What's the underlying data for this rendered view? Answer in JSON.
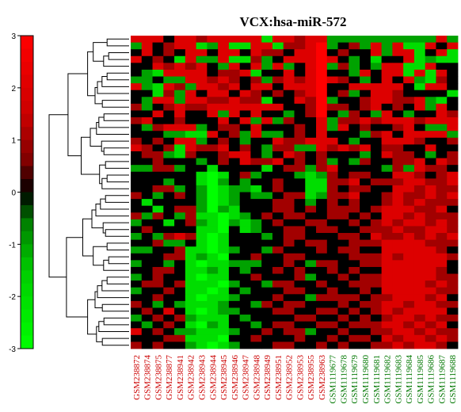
{
  "chart_data": {
    "type": "heatmap",
    "title": "VCX:hsa-miR-572",
    "colorbar": {
      "ticks": [
        3,
        2,
        1,
        0,
        -1,
        -2,
        -3
      ],
      "stops": [
        {
          "value": -3,
          "color": "#00ff00"
        },
        {
          "value": -1.5,
          "color": "#00cc00"
        },
        {
          "value": -0.6,
          "color": "#008000"
        },
        {
          "value": 0,
          "color": "#000000"
        },
        {
          "value": 0.6,
          "color": "#800000"
        },
        {
          "value": 1.5,
          "color": "#cc0000"
        },
        {
          "value": 3,
          "color": "#ff0000"
        }
      ]
    },
    "columns": [
      {
        "label": "GSM238872",
        "group": "red"
      },
      {
        "label": "GSM238874",
        "group": "red"
      },
      {
        "label": "GSM238875",
        "group": "red"
      },
      {
        "label": "GSM238877",
        "group": "red"
      },
      {
        "label": "GSM238941",
        "group": "red"
      },
      {
        "label": "GSM238942",
        "group": "red"
      },
      {
        "label": "GSM238943",
        "group": "red"
      },
      {
        "label": "GSM238944",
        "group": "red"
      },
      {
        "label": "GSM238945",
        "group": "red"
      },
      {
        "label": "GSM238946",
        "group": "red"
      },
      {
        "label": "GSM238947",
        "group": "red"
      },
      {
        "label": "GSM238948",
        "group": "red"
      },
      {
        "label": "GSM238949",
        "group": "red"
      },
      {
        "label": "GSM238951",
        "group": "red"
      },
      {
        "label": "GSM238952",
        "group": "red"
      },
      {
        "label": "GSM238953",
        "group": "red"
      },
      {
        "label": "GSM238955",
        "group": "red"
      },
      {
        "label": "GSM238963",
        "group": "red"
      },
      {
        "label": "GSM1119677",
        "group": "green"
      },
      {
        "label": "GSM1119678",
        "group": "green"
      },
      {
        "label": "GSM1119679",
        "group": "green"
      },
      {
        "label": "GSM1119680",
        "group": "green"
      },
      {
        "label": "GSM1119681",
        "group": "green"
      },
      {
        "label": "GSM1119682",
        "group": "green"
      },
      {
        "label": "GSM1119683",
        "group": "green"
      },
      {
        "label": "GSM1119684",
        "group": "green"
      },
      {
        "label": "GSM1119685",
        "group": "green"
      },
      {
        "label": "GSM1119686",
        "group": "green"
      },
      {
        "label": "GSM1119687",
        "group": "green"
      },
      {
        "label": "GSM1119688",
        "group": "green"
      }
    ],
    "group_colors": {
      "red": "#cc0000",
      "green": "#007700"
    },
    "n_rows": 46,
    "values": [
      [
        2,
        2,
        2,
        0,
        2,
        2,
        1,
        2,
        2,
        2,
        2,
        2,
        -2,
        2,
        2,
        1,
        2,
        2,
        -1,
        -1,
        -1,
        -1,
        -1,
        -1,
        -1,
        -1,
        -1,
        -1,
        2,
        -1
      ],
      [
        -1,
        2,
        0,
        1,
        2,
        2,
        -2,
        -1,
        2,
        -2,
        -2,
        2,
        2,
        -2,
        1,
        1,
        2,
        3,
        -1,
        0,
        1,
        -1,
        2,
        -1,
        2,
        -2,
        -2,
        2,
        0,
        2
      ],
      [
        0,
        2,
        0,
        1,
        0,
        2,
        2,
        0,
        2,
        2,
        0,
        2,
        1,
        1,
        0,
        2,
        2,
        3,
        0,
        1,
        0,
        0,
        2,
        -1,
        2,
        2,
        -2,
        0,
        2,
        -2
      ],
      [
        2,
        0,
        1,
        0,
        -2,
        2,
        -1,
        -1,
        2,
        -2,
        -2,
        1,
        -1,
        0,
        2,
        2,
        2,
        3,
        2,
        0,
        -1,
        0,
        -2,
        0,
        0,
        2,
        -2,
        -1,
        -2,
        -2
      ],
      [
        0,
        0,
        2,
        1,
        2,
        1,
        2,
        0,
        -1,
        2,
        0,
        2,
        -1,
        2,
        -1,
        0,
        2,
        3,
        -1,
        1,
        -1,
        0,
        -1,
        2,
        2,
        -2,
        -2,
        2,
        0,
        0
      ],
      [
        0,
        -1,
        -2,
        2,
        2,
        2,
        2,
        0,
        1,
        1,
        2,
        -2,
        0,
        0,
        2,
        0,
        2,
        3,
        0,
        0,
        -1,
        2,
        0,
        2,
        2,
        -2,
        2,
        -2,
        2,
        0
      ],
      [
        -1,
        -1,
        0,
        -1,
        -1,
        2,
        2,
        1,
        2,
        1,
        0,
        1,
        -1,
        1,
        2,
        1,
        2,
        3,
        2,
        1,
        0,
        -1,
        0,
        2,
        0,
        2,
        -1,
        -2,
        1,
        0
      ],
      [
        2,
        -1,
        -2,
        2,
        1,
        -1,
        2,
        2,
        1,
        2,
        0,
        2,
        2,
        0,
        2,
        2,
        2,
        3,
        0,
        0,
        2,
        2,
        2,
        2,
        2,
        0,
        -2,
        2,
        2,
        0
      ],
      [
        0,
        0,
        -2,
        1,
        -1,
        2,
        0,
        2,
        2,
        0,
        2,
        1,
        0,
        1,
        0,
        1,
        2,
        3,
        0,
        1,
        -1,
        0,
        2,
        2,
        1,
        0,
        0,
        0,
        0,
        -2
      ],
      [
        0,
        -1,
        2,
        2,
        -1,
        2,
        2,
        1,
        1,
        2,
        1,
        1,
        -2,
        0,
        0,
        2,
        1,
        3,
        -1,
        0,
        0,
        1,
        2,
        2,
        1,
        1,
        2,
        -1,
        -2,
        0
      ],
      [
        1,
        -1,
        0,
        1,
        2,
        1,
        1,
        2,
        2,
        2,
        2,
        2,
        2,
        2,
        0,
        0,
        1,
        3,
        1,
        1,
        0,
        1,
        2,
        0,
        1,
        0,
        2,
        -1,
        2,
        0
      ],
      [
        0,
        0,
        2,
        0,
        2,
        0,
        0,
        2,
        -1,
        2,
        0,
        2,
        0,
        0,
        -1,
        0,
        1,
        3,
        0,
        -1,
        1,
        0,
        -1,
        2,
        0,
        -1,
        0,
        0,
        2,
        1
      ],
      [
        1,
        2,
        0,
        0,
        1,
        0,
        0,
        0,
        2,
        0,
        2,
        -1,
        2,
        -1,
        1,
        0,
        0,
        2,
        -1,
        1,
        1,
        2,
        1,
        2,
        2,
        2,
        1,
        2,
        2,
        2
      ],
      [
        0,
        -1,
        1,
        2,
        2,
        2,
        -1,
        0,
        1,
        1,
        0,
        2,
        0,
        0,
        0,
        1,
        0,
        2,
        -1,
        2,
        0,
        1,
        0,
        0,
        1,
        2,
        0,
        -1,
        -1,
        2
      ],
      [
        0,
        0,
        0,
        -1,
        -1,
        -2,
        -2,
        2,
        0,
        1,
        -1,
        2,
        -1,
        -1,
        0,
        1,
        0,
        2,
        0,
        0,
        0,
        -1,
        1,
        2,
        0,
        2,
        2,
        2,
        2,
        -1
      ],
      [
        1,
        0,
        1,
        0,
        2,
        2,
        -1,
        0,
        1,
        0,
        -1,
        0,
        0,
        2,
        1,
        1,
        2,
        2,
        2,
        0,
        -1,
        0,
        0,
        2,
        2,
        2,
        1,
        0,
        0,
        1
      ],
      [
        2,
        1,
        0,
        1,
        -2,
        2,
        1,
        1,
        2,
        0,
        1,
        0,
        -1,
        1,
        1,
        -1,
        -1,
        2,
        1,
        2,
        1,
        2,
        0,
        1,
        1,
        0,
        0,
        2,
        0,
        0
      ],
      [
        0,
        1,
        1,
        -1,
        -2,
        1,
        0,
        0,
        1,
        2,
        2,
        0,
        -1,
        0,
        2,
        1,
        0,
        1,
        0,
        0,
        0,
        -1,
        0,
        2,
        1,
        1,
        0,
        -1,
        0,
        1
      ],
      [
        0,
        0,
        1,
        0,
        0,
        0,
        -1,
        0,
        1,
        0,
        2,
        1,
        1,
        2,
        0,
        1,
        0,
        1,
        -1,
        0,
        -1,
        1,
        0,
        0,
        1,
        1,
        2,
        0,
        2,
        1
      ],
      [
        -1,
        -1,
        1,
        1,
        -1,
        0,
        0,
        -2,
        0,
        0,
        0,
        0,
        -2,
        0,
        1,
        1,
        -1,
        1,
        2,
        0,
        0,
        0,
        0,
        -1,
        1,
        -1,
        2,
        1,
        1,
        0
      ],
      [
        0,
        0,
        0,
        0,
        0,
        0,
        -2,
        -3,
        -2,
        0,
        1,
        -1,
        0,
        0,
        0,
        -1,
        -2,
        -1,
        1,
        0,
        1,
        1,
        0,
        0,
        2,
        2,
        1,
        0,
        1,
        2
      ],
      [
        0,
        0,
        0,
        -1,
        0,
        0,
        -2,
        -3,
        -1,
        0,
        -1,
        0,
        0,
        1,
        0,
        0,
        -2,
        -2,
        1,
        1,
        2,
        0,
        1,
        1,
        1,
        2,
        2,
        1,
        1,
        2
      ],
      [
        0,
        0,
        1,
        1,
        -1,
        0,
        -1,
        -3,
        -2,
        -1,
        -1,
        -2,
        0,
        1,
        0,
        0,
        -2,
        -2,
        1,
        0,
        1,
        1,
        0,
        0,
        2,
        2,
        1,
        2,
        1,
        1
      ],
      [
        1,
        0,
        -1,
        0,
        1,
        0,
        -1,
        -3,
        -2,
        -1,
        0,
        -1,
        -1,
        0,
        1,
        1,
        -2,
        -1,
        1,
        1,
        2,
        0,
        0,
        1,
        2,
        1,
        1,
        2,
        1,
        2
      ],
      [
        0,
        -2,
        0,
        0,
        0,
        0,
        -1,
        -3,
        -2,
        -1,
        0,
        0,
        0,
        1,
        1,
        0,
        -1,
        0,
        1,
        0,
        1,
        0,
        0,
        1,
        2,
        1,
        2,
        1,
        1,
        1
      ],
      [
        0,
        0,
        -2,
        0,
        1,
        1,
        -1,
        -3,
        -1,
        -2,
        0,
        0,
        0,
        1,
        1,
        0,
        1,
        0,
        1,
        1,
        1,
        0,
        1,
        2,
        2,
        2,
        1,
        1,
        2,
        0
      ],
      [
        1,
        -1,
        1,
        0,
        -1,
        1,
        -2,
        -2,
        -3,
        -2,
        -1,
        0,
        1,
        0,
        1,
        1,
        0,
        0,
        1,
        1,
        0,
        1,
        0,
        2,
        2,
        1,
        2,
        1,
        1,
        1
      ],
      [
        -1,
        0,
        0,
        -2,
        0,
        1,
        -1,
        -2,
        -3,
        -1,
        -2,
        -1,
        0,
        1,
        0,
        0,
        1,
        1,
        0,
        0,
        1,
        0,
        1,
        2,
        1,
        2,
        2,
        1,
        2,
        1
      ],
      [
        0,
        1,
        0,
        0,
        0,
        0,
        -2,
        -2,
        -3,
        0,
        -2,
        -1,
        0,
        0,
        1,
        1,
        0,
        1,
        1,
        0,
        0,
        1,
        1,
        1,
        2,
        1,
        1,
        2,
        2,
        1
      ],
      [
        -1,
        0,
        -1,
        1,
        2,
        1,
        -2,
        -3,
        -2,
        0,
        0,
        0,
        -1,
        0,
        1,
        1,
        0,
        0,
        0,
        1,
        1,
        0,
        2,
        1,
        1,
        2,
        1,
        2,
        1,
        2
      ],
      [
        0,
        0,
        1,
        -1,
        -1,
        0,
        -2,
        -3,
        -2,
        0,
        0,
        0,
        0,
        0,
        1,
        0,
        1,
        1,
        0,
        0,
        1,
        1,
        1,
        2,
        2,
        2,
        2,
        1,
        1,
        1
      ],
      [
        -1,
        -1,
        0,
        0,
        1,
        -2,
        -2,
        -3,
        -2,
        -1,
        0,
        0,
        -1,
        1,
        0,
        0,
        0,
        1,
        0,
        1,
        1,
        0,
        0,
        2,
        2,
        2,
        2,
        2,
        1,
        0
      ],
      [
        0,
        0,
        0,
        1,
        1,
        -2,
        -1,
        -2,
        -3,
        0,
        0,
        1,
        0,
        0,
        1,
        1,
        0,
        0,
        0,
        0,
        1,
        1,
        1,
        2,
        1,
        2,
        2,
        2,
        2,
        1
      ],
      [
        -1,
        0,
        0,
        -1,
        0,
        -2,
        -3,
        -2,
        -2,
        -1,
        -1,
        -1,
        0,
        0,
        1,
        0,
        -1,
        1,
        1,
        0,
        0,
        1,
        1,
        2,
        2,
        2,
        2,
        2,
        2,
        0
      ],
      [
        0,
        0,
        1,
        1,
        0,
        -2,
        -2,
        -1,
        -2,
        0,
        -1,
        0,
        0,
        1,
        0,
        1,
        0,
        0,
        1,
        0,
        1,
        0,
        0,
        2,
        2,
        2,
        2,
        2,
        1,
        0
      ],
      [
        -1,
        0,
        1,
        0,
        0,
        -2,
        -3,
        -2,
        -2,
        0,
        0,
        1,
        0,
        0,
        0,
        1,
        -1,
        0,
        0,
        1,
        0,
        1,
        1,
        2,
        2,
        2,
        2,
        2,
        1,
        1
      ],
      [
        0,
        1,
        1,
        0,
        1,
        -2,
        -2,
        -2,
        -3,
        -1,
        0,
        0,
        -1,
        1,
        1,
        0,
        0,
        1,
        0,
        0,
        1,
        1,
        1,
        2,
        2,
        2,
        2,
        1,
        2,
        1
      ],
      [
        -1,
        0,
        0,
        1,
        0,
        -2,
        -2,
        -3,
        -2,
        0,
        -1,
        0,
        0,
        0,
        1,
        1,
        0,
        0,
        1,
        0,
        0,
        1,
        0,
        2,
        2,
        2,
        2,
        2,
        1,
        1
      ],
      [
        0,
        0,
        1,
        0,
        0,
        -2,
        -3,
        -2,
        -2,
        -1,
        0,
        0,
        0,
        1,
        0,
        0,
        -1,
        1,
        1,
        1,
        1,
        0,
        1,
        1,
        2,
        2,
        2,
        1,
        2,
        0
      ],
      [
        1,
        0,
        -1,
        0,
        -1,
        -2,
        -2,
        -2,
        -1,
        0,
        0,
        -1,
        1,
        0,
        1,
        1,
        0,
        0,
        0,
        1,
        0,
        1,
        1,
        2,
        2,
        1,
        2,
        2,
        1,
        1
      ],
      [
        0,
        1,
        0,
        2,
        0,
        -2,
        -3,
        -2,
        -1,
        -1,
        0,
        0,
        0,
        1,
        1,
        0,
        0,
        1,
        1,
        0,
        1,
        0,
        1,
        2,
        1,
        2,
        2,
        2,
        2,
        0
      ],
      [
        -1,
        0,
        1,
        0,
        1,
        -1,
        -2,
        -2,
        -2,
        0,
        -1,
        0,
        0,
        0,
        0,
        1,
        1,
        0,
        0,
        1,
        0,
        1,
        0,
        1,
        2,
        2,
        1,
        2,
        1,
        1
      ],
      [
        0,
        -1,
        0,
        1,
        0,
        -2,
        -3,
        -1,
        -2,
        0,
        0,
        -1,
        0,
        1,
        1,
        0,
        0,
        1,
        1,
        0,
        1,
        1,
        1,
        2,
        2,
        1,
        2,
        1,
        2,
        0
      ],
      [
        2,
        0,
        1,
        0,
        -1,
        -1,
        -2,
        -2,
        -2,
        -1,
        0,
        0,
        1,
        0,
        1,
        1,
        -1,
        0,
        0,
        1,
        0,
        0,
        1,
        1,
        2,
        2,
        1,
        2,
        1,
        1
      ],
      [
        0,
        0,
        0,
        1,
        1,
        -2,
        -2,
        -2,
        -3,
        0,
        0,
        1,
        0,
        0,
        0,
        1,
        0,
        0,
        1,
        0,
        1,
        1,
        0,
        2,
        1,
        2,
        2,
        1,
        2,
        1
      ],
      [
        1,
        0,
        1,
        0,
        0,
        -1,
        -2,
        -3,
        -2,
        -1,
        0,
        0,
        0,
        1,
        1,
        0,
        0,
        1,
        0,
        1,
        0,
        0,
        1,
        1,
        2,
        1,
        2,
        2,
        1,
        0
      ]
    ]
  }
}
